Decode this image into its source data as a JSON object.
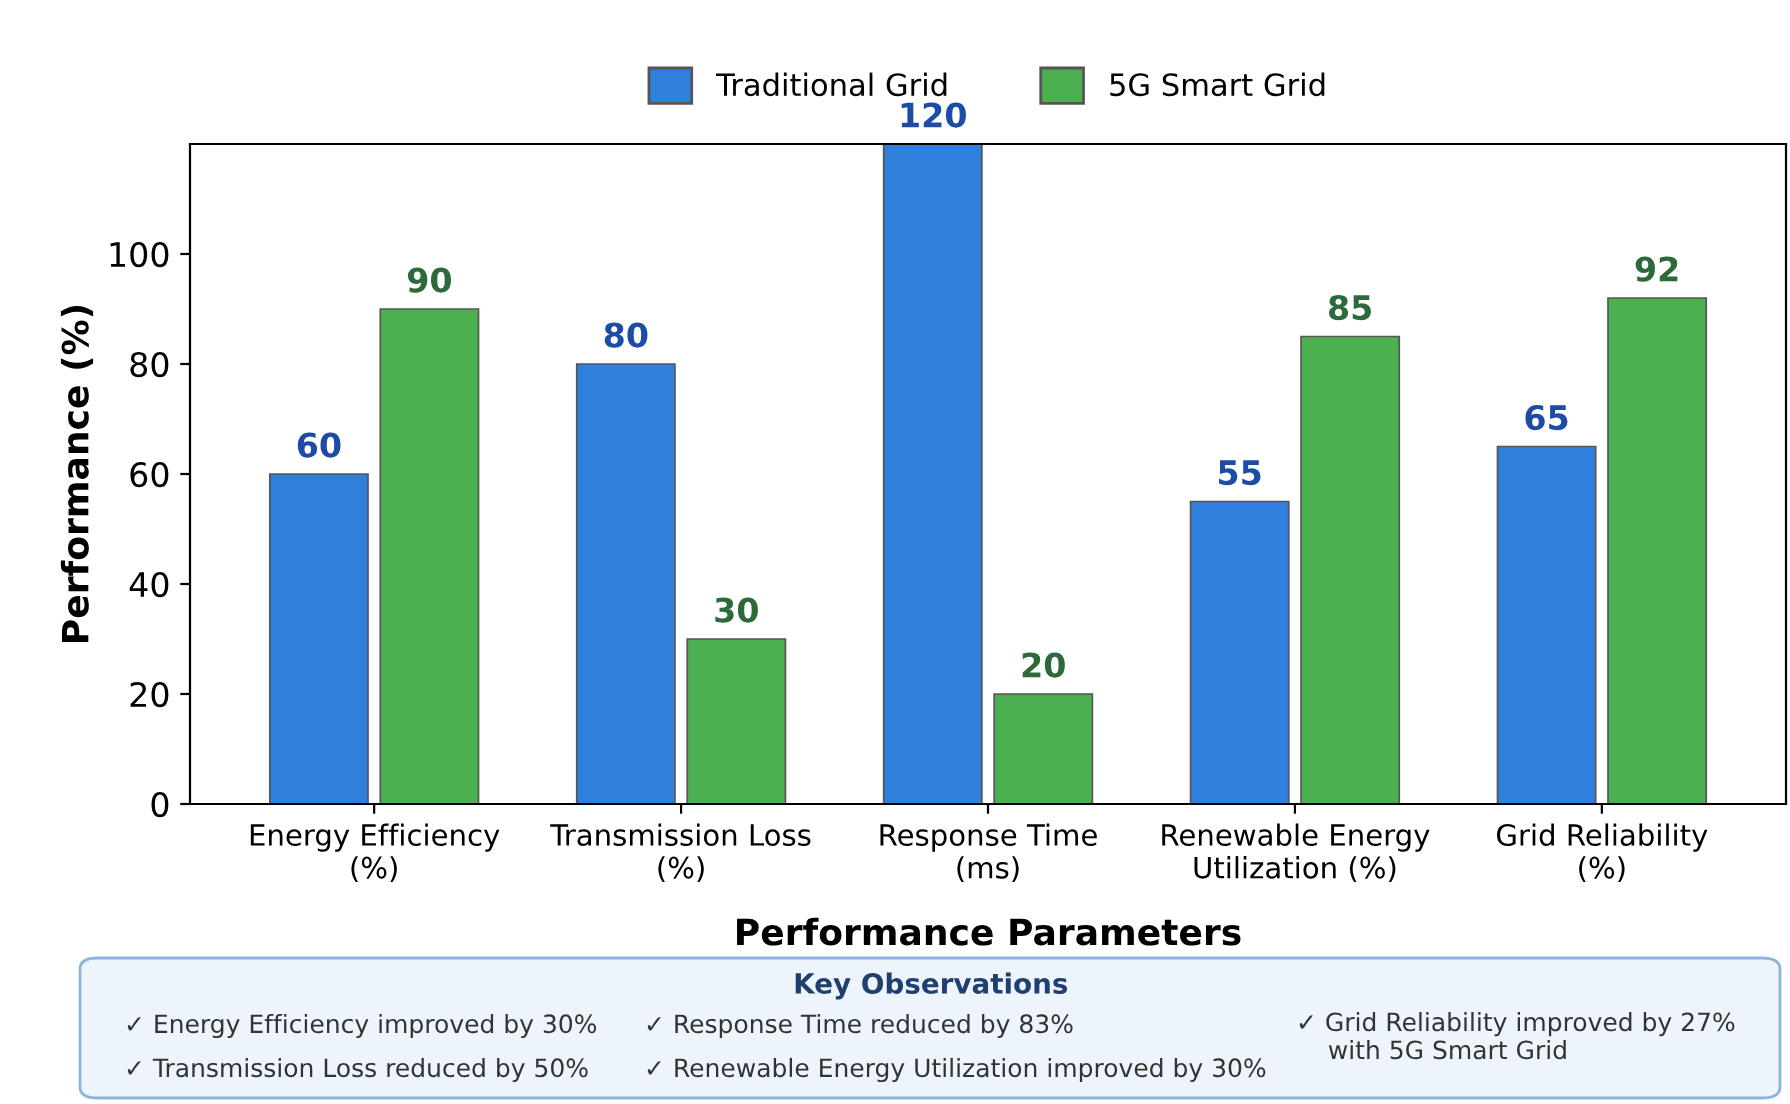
{
  "chart_data": {
    "type": "bar",
    "xlabel": "Performance Parameters",
    "ylabel": "Performance (%)",
    "categories": [
      "Energy Efficiency\n(%)",
      "Transmission Loss\n(%)",
      "Response Time\n(ms)",
      "Renewable Energy\nUtilization (%)",
      "Grid Reliability\n(%)"
    ],
    "series": [
      {
        "name": "Traditional Grid",
        "color": "#2f7fdc",
        "values": [
          60,
          80,
          120,
          55,
          65
        ]
      },
      {
        "name": "5G Smart Grid",
        "color": "#4caf50",
        "values": [
          90,
          30,
          20,
          85,
          92
        ]
      }
    ],
    "ylim": [
      0,
      120
    ],
    "yticks": [
      0,
      20,
      40,
      60,
      80,
      100
    ],
    "data_labels": true,
    "legend": "top",
    "grid": false,
    "annotations": [
      "Key Observations",
      "✓ Energy Efficiency improved by 30%",
      "✓ Transmission Loss reduced by 50%",
      "✓ Response Time reduced by 83%",
      "✓ Renewable Energy Utilization improved by 30%",
      "✓ Grid Reliability improved by 27%\n    with 5G Smart Grid"
    ]
  }
}
